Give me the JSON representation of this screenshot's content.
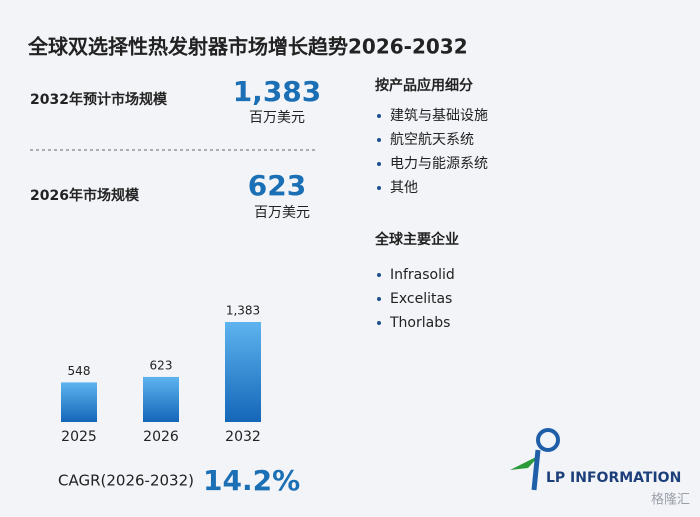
{
  "title": "全球双选择性热发射器市场增长趋势2026-2032",
  "stats": [
    {
      "label": "2032年预计市场规模",
      "value": "1,383",
      "unit": "百万美元"
    },
    {
      "label": "2026年市场规模",
      "value": "623",
      "unit": "百万美元"
    }
  ],
  "segments": {
    "heading": "按产品应用细分",
    "items": [
      "建筑与基础设施",
      "航空航天系统",
      "电力与能源系统",
      "其他"
    ]
  },
  "companies": {
    "heading": "全球主要企业",
    "items": [
      "Infrasolid",
      "Excelitas",
      "Thorlabs"
    ]
  },
  "cagr": {
    "label": "CAGR(2026-2032)",
    "value": "14.2%"
  },
  "logo": "LP INFORMATION",
  "source_mark": "格隆汇",
  "chart_data": {
    "type": "bar",
    "categories": [
      "2025",
      "2026",
      "2032"
    ],
    "values": [
      548,
      623,
      1383
    ],
    "value_labels": [
      "548",
      "623",
      "1,383"
    ],
    "color": "#1f78c8"
  }
}
